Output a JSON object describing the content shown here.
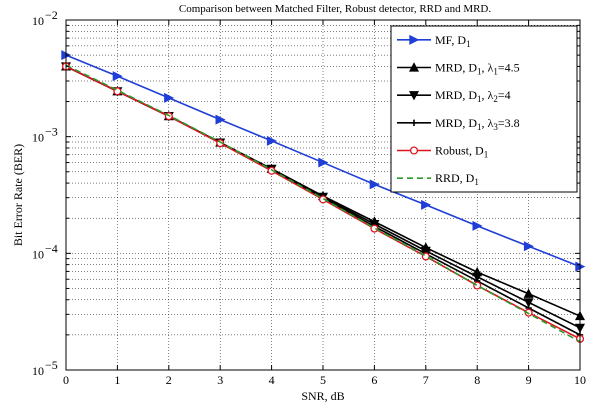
{
  "chart_data": {
    "type": "line",
    "title": "Comparison between Matched Filter, Robust detector, RRD and MRD.",
    "xlabel": "SNR, dB",
    "ylabel": "Bit Error Rate (BER)",
    "xlim": [
      0,
      10
    ],
    "ylim": [
      1e-05,
      0.01
    ],
    "yscale": "log",
    "grid": true,
    "legend_position": "top-right",
    "x": [
      0,
      1,
      2,
      3,
      4,
      5,
      6,
      7,
      8,
      9,
      10
    ],
    "x_ticks": [
      "0",
      "1",
      "2",
      "3",
      "4",
      "5",
      "6",
      "7",
      "8",
      "9",
      "10"
    ],
    "y_ticks": [
      {
        "value": 1e-05,
        "base": "10",
        "exp": "−5"
      },
      {
        "value": 0.0001,
        "base": "10",
        "exp": "−4"
      },
      {
        "value": 0.001,
        "base": "10",
        "exp": "−3"
      },
      {
        "value": 0.01,
        "base": "10",
        "exp": "−2"
      }
    ],
    "series": [
      {
        "name": "MF, D1",
        "legend": {
          "main": "MF, D",
          "sub": "1",
          "rest": ""
        },
        "color": "#1f3fd6",
        "marker": "triangle-right",
        "dash": "solid",
        "values": [
          0.005,
          0.0033,
          0.00215,
          0.0014,
          0.00092,
          0.0006,
          0.00039,
          0.00026,
          0.000172,
          0.000115,
          7.7e-05
        ]
      },
      {
        "name": "MRD, D1, λ1=4.5",
        "legend": {
          "main": "MRD, D",
          "sub": "1",
          "rest": ", λ",
          "sub2": "1",
          "rest2": "=4.5"
        },
        "color": "#000000",
        "marker": "triangle-up",
        "dash": "solid",
        "values": [
          0.004,
          0.00245,
          0.0015,
          0.00089,
          0.00053,
          0.00031,
          0.000187,
          0.000112,
          6.9e-05,
          4.5e-05,
          2.9e-05
        ]
      },
      {
        "name": "MRD, D1, λ2=4",
        "legend": {
          "main": "MRD, D",
          "sub": "1",
          "rest": ", λ",
          "sub2": "2",
          "rest2": "=4"
        },
        "color": "#000000",
        "marker": "triangle-down",
        "dash": "solid",
        "values": [
          0.004,
          0.00245,
          0.0015,
          0.00089,
          0.00053,
          0.000305,
          0.000178,
          0.000105,
          6.3e-05,
          3.8e-05,
          2.3e-05
        ]
      },
      {
        "name": "MRD, D1, λ3=3.8",
        "legend": {
          "main": "MRD, D",
          "sub": "1",
          "rest": ", λ",
          "sub2": "3",
          "rest2": "=3.8"
        },
        "color": "#000000",
        "marker": "plus",
        "dash": "solid",
        "values": [
          0.004,
          0.00245,
          0.0015,
          0.00089,
          0.00052,
          0.0003,
          0.00017,
          9.9e-05,
          5.8e-05,
          3.4e-05,
          2e-05
        ]
      },
      {
        "name": "Robust, D1",
        "legend": {
          "main": "Robust, D",
          "sub": "1",
          "rest": ""
        },
        "color": "#e0141e",
        "marker": "circle",
        "dash": "solid",
        "values": [
          0.004,
          0.00245,
          0.0015,
          0.00088,
          0.00051,
          0.00029,
          0.000163,
          9.4e-05,
          5.3e-05,
          3.1e-05,
          1.85e-05
        ]
      },
      {
        "name": "RRD, D1",
        "legend": {
          "main": "RRD, D",
          "sub": "1",
          "rest": ""
        },
        "color": "#2a9a2a",
        "marker": "none",
        "dash": "dashed",
        "values": [
          0.0041,
          0.0025,
          0.00152,
          0.0009,
          0.00052,
          0.000295,
          0.000165,
          9.5e-05,
          5.3e-05,
          3.05e-05,
          1.75e-05
        ]
      }
    ]
  }
}
